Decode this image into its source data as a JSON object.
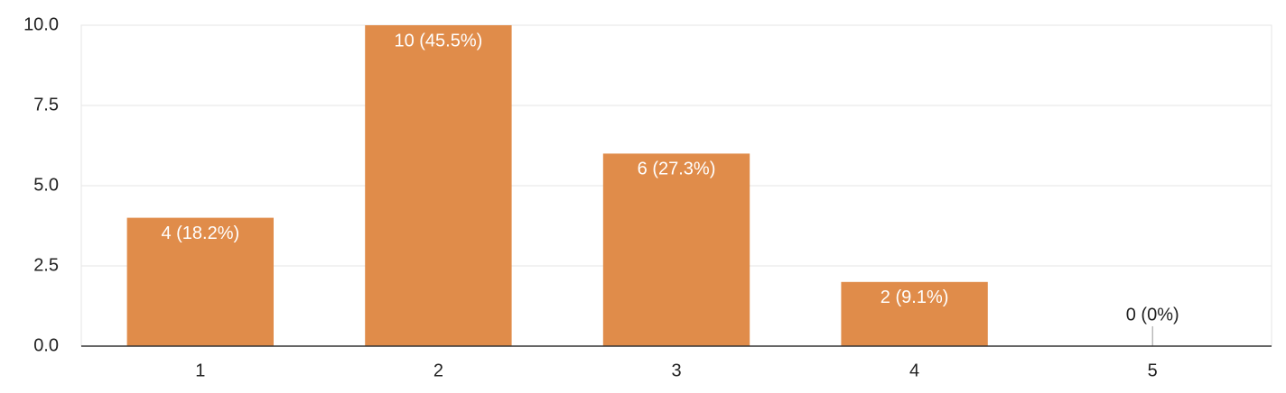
{
  "chart_data": {
    "type": "bar",
    "categories": [
      "1",
      "2",
      "3",
      "4",
      "5"
    ],
    "values": [
      4,
      10,
      6,
      2,
      0
    ],
    "value_labels": [
      "4 (18.2%)",
      "10 (45.5%)",
      "6 (27.3%)",
      "2 (9.1%)",
      "0 (0%)"
    ],
    "color": "#e08c4a",
    "ylim": [
      0,
      10
    ],
    "yticks": [
      {
        "value": 0,
        "label": "0.0"
      },
      2.5,
      {
        "value": 5,
        "label": "5.0"
      },
      7.5,
      {
        "value": 10,
        "label": "10.0"
      }
    ],
    "grid": true
  }
}
